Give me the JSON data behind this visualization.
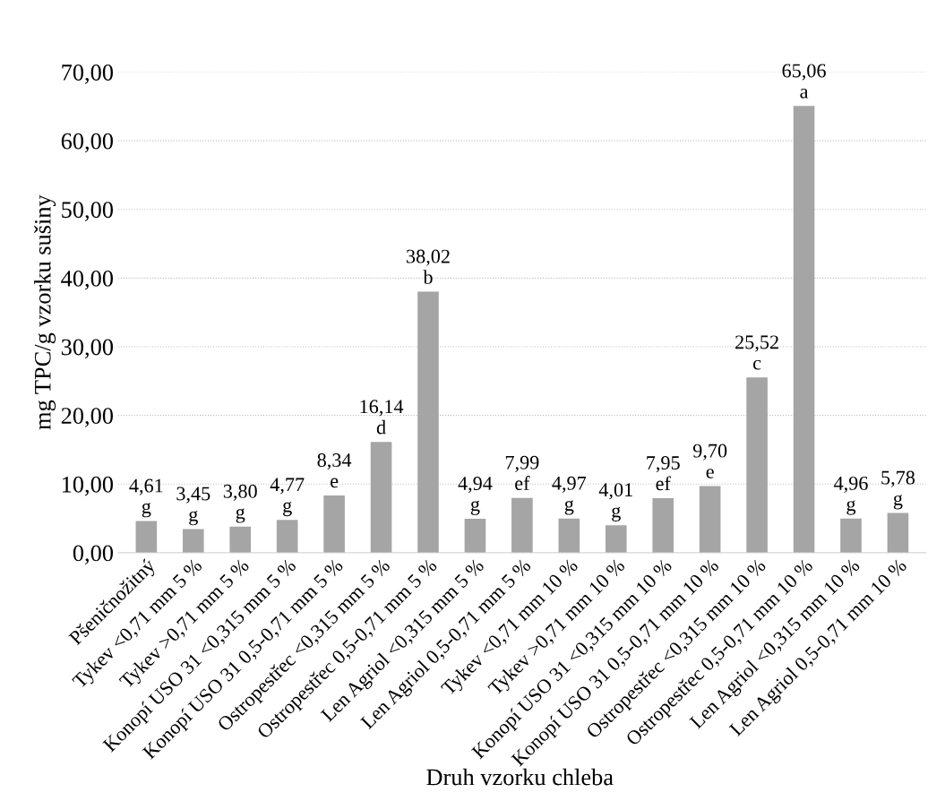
{
  "chart_data": {
    "type": "bar",
    "xlabel": "Druh vzorku chleba",
    "ylabel": "mg TPC/g vzorku sušiny",
    "categories": [
      "Pšeničnožitný",
      "Tykev <0,71 mm 5 %",
      "Tykev >0,71 mm 5 %",
      "Konopí USO 31 <0,315 mm 5 %",
      "Konopí USO 31 0,5-0,71 mm 5 %",
      "Ostropestřec <0,315 mm 5 %",
      "Ostropestřec 0,5-0,71 mm 5 %",
      "Len Agriol <0,315 mm 5 %",
      "Len Agriol 0,5-0,71 mm 5 %",
      "Tykev <0,71 mm 10 %",
      "Tykev >0,71 mm 10 %",
      "Konopí USO 31 <0,315 mm 10 %",
      "Konopí USO 31 0,5-0,71 mm 10 %",
      "Ostropestřec <0,315 mm 10 %",
      "Ostropestřec 0,5-0,71 mm 10 %",
      "Len Agriol <0,315 mm 10 %",
      "Len Agriol 0,5-0,71 mm 10 %"
    ],
    "values": [
      4.61,
      3.45,
      3.8,
      4.77,
      8.34,
      16.14,
      38.02,
      4.94,
      7.99,
      4.97,
      4.01,
      7.95,
      9.7,
      25.52,
      65.06,
      4.96,
      5.78
    ],
    "value_labels": [
      "4,61\ng",
      "3,45\ng",
      "3,80\ng",
      "4,77\ng",
      "8,34\ne",
      "16,14\nd",
      "38,02\nb",
      "4,94\ng",
      "7,99\nef",
      "4,97\ng",
      "4,01\ng",
      "7,95\nef",
      "9,70\ne",
      "25,52\nc",
      "65,06\na",
      "4,96\ng",
      "5,78\ng"
    ],
    "color": "#a5a5a5",
    "ylim": [
      0,
      70
    ],
    "yticks": [
      {
        "value": 0,
        "label": "0,00"
      },
      {
        "value": 10,
        "label": "10,00"
      },
      {
        "value": 20,
        "label": "20,00"
      },
      {
        "value": 30,
        "label": "30,00"
      },
      {
        "value": 40,
        "label": "40,00"
      },
      {
        "value": 50,
        "label": "50,00"
      },
      {
        "value": 60,
        "label": "60,00"
      },
      {
        "value": 70,
        "label": "70,00"
      }
    ],
    "grid": "y"
  }
}
